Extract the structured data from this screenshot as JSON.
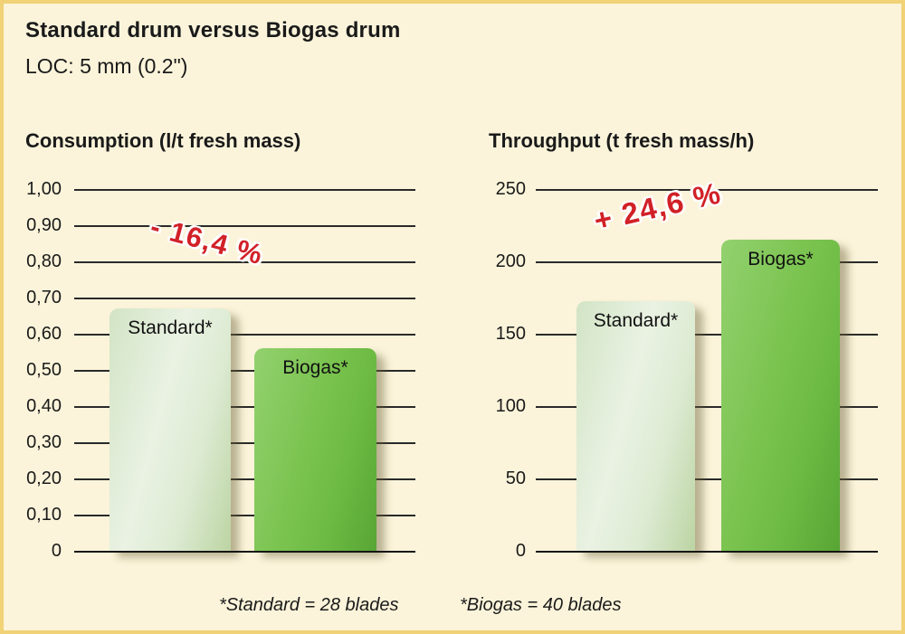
{
  "header": {
    "title": "Standard drum versus Biogas drum",
    "subtitle": "LOC: 5 mm (0.2\")"
  },
  "footnotes": {
    "standard": "*Standard = 28 blades",
    "biogas": "*Biogas = 40 blades"
  },
  "colors": {
    "background": "#fbf4da",
    "border": "#f1d276",
    "grid_line": "#2a2a2a",
    "text": "#1a1a1a",
    "annotation_red": "#d12128",
    "bar_standard_light": "#eaf2e3",
    "bar_standard_dark": "#bcd4a3",
    "bar_biogas_light": "#93d16f",
    "bar_biogas_dark": "#58a535"
  },
  "chart_data": [
    {
      "type": "bar",
      "title": "Consumption (l/t fresh mass)",
      "categories": [
        "Standard*",
        "Biogas*"
      ],
      "values": [
        0.67,
        0.56
      ],
      "ylim": [
        0,
        1.0
      ],
      "ytick_step": 0.1,
      "ytick_labels": [
        "1,00",
        "0,90",
        "0,80",
        "0,70",
        "0,60",
        "0,50",
        "0,40",
        "0,30",
        "0,20",
        "0,10",
        "0"
      ],
      "xlabel": "",
      "ylabel": "",
      "grid": true,
      "legend": "none",
      "annotation": "- 16,4 %",
      "annotation_meaning": "Biogas drum consumption is 16.4% lower than Standard drum"
    },
    {
      "type": "bar",
      "title": "Throughput (t fresh mass/h)",
      "categories": [
        "Standard*",
        "Biogas*"
      ],
      "values": [
        172.5,
        215
      ],
      "ylim": [
        0,
        250
      ],
      "ytick_step": 50,
      "ytick_labels": [
        "250",
        "200",
        "150",
        "100",
        "50",
        "0"
      ],
      "xlabel": "",
      "ylabel": "",
      "grid": true,
      "legend": "none",
      "annotation": "+ 24,6 %",
      "annotation_meaning": "Biogas drum throughput is 24.6% higher than Standard drum"
    }
  ]
}
